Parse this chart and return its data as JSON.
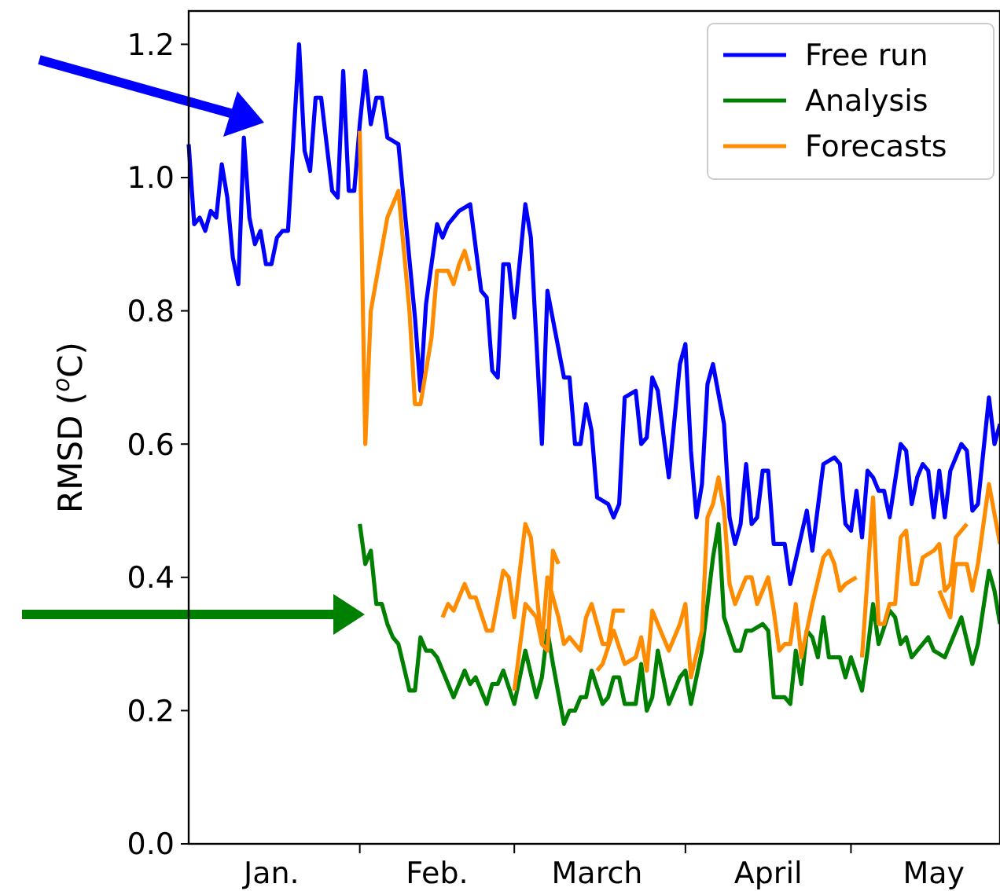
{
  "chart_data": {
    "type": "line",
    "ylabel": "RMSD ($^{o}$C)",
    "xlim": [
      "--01-01",
      "--05-28"
    ],
    "ylim": [
      0,
      1.25
    ],
    "yticks": [
      {
        "value": 0,
        "label": "0.0"
      },
      0.2,
      0.4,
      0.6,
      0.8,
      {
        "value": 1,
        "label": "1.0"
      },
      1.2
    ],
    "xticks": [
      {
        "value": "--02-01",
        "label": null
      },
      {
        "value": "--03-01",
        "label": null
      },
      {
        "value": "--04-01",
        "label": null
      },
      {
        "value": "--05-01",
        "label": null
      },
      {
        "value": "--01-16",
        "label": "Jan."
      },
      {
        "value": "--02-15",
        "label": "Feb."
      },
      {
        "value": "--03-16",
        "label": "March"
      },
      {
        "value": "--04-16",
        "label": "April"
      },
      {
        "value": "--05-16",
        "label": "May"
      }
    ],
    "legend": "top right",
    "series": [
      {
        "name": "Free run",
        "color": "#0000ff",
        "x": [
          "--01-01",
          "--01-02",
          "--01-03",
          "--01-04",
          "--01-05",
          "--01-06",
          "--01-07",
          "--01-08",
          "--01-09",
          "--01-10",
          "--01-11",
          "--01-12",
          "--01-13",
          "--01-14",
          "--01-15",
          "--01-16",
          "--01-17",
          "--01-18",
          "--01-19",
          "--01-21",
          "--01-22",
          "--01-23",
          "--01-24",
          "--01-25",
          "--01-27",
          "--01-28",
          "--01-29",
          "--01-30",
          "--01-31",
          "--02-01",
          "--02-02",
          "--02-03",
          "--02-04",
          "--02-05",
          "--02-06",
          "--02-08",
          "--02-11",
          "--02-12",
          "--02-13",
          "--02-15",
          "--02-16",
          "--02-17",
          "--02-18",
          "--02-19",
          "--02-21",
          "--02-23",
          "--02-24",
          "--02-25",
          "--02-26",
          "--02-27",
          "--02-28",
          "--03-01",
          "--03-03",
          "--03-04",
          "--03-06",
          "--03-07",
          "--03-10",
          "--03-11",
          "--03-12",
          "--03-13",
          "--03-14",
          "--03-15",
          "--03-16",
          "--03-18",
          "--03-19",
          "--03-20",
          "--03-21",
          "--03-23",
          "--03-24",
          "--03-25",
          "--03-26",
          "--03-27",
          "--03-29",
          "--03-31",
          "--04-01",
          "--04-02",
          "--04-03",
          "--04-04",
          "--04-05",
          "--04-06",
          "--04-08",
          "--04-09",
          "--04-10",
          "--04-11",
          "--04-12",
          "--04-13",
          "--04-14",
          "--04-15",
          "--04-16",
          "--04-17",
          "--04-19",
          "--04-20",
          "--04-23",
          "--04-24",
          "--04-26",
          "--04-28",
          "--04-29",
          "--04-30",
          "--05-01",
          "--05-02",
          "--05-03",
          "--05-04",
          "--05-05",
          "--05-06",
          "--05-07",
          "--05-08",
          "--05-10",
          "--05-11",
          "--05-12",
          "--05-13",
          "--05-14",
          "--05-15",
          "--05-16",
          "--05-17",
          "--05-18",
          "--05-19",
          "--05-21",
          "--05-22",
          "--05-23",
          "--05-24",
          "--05-26",
          "--05-27",
          "--05-28"
        ],
        "values": [
          1.05,
          0.93,
          0.94,
          0.92,
          0.95,
          0.94,
          1.02,
          0.97,
          0.88,
          0.84,
          1.06,
          0.94,
          0.9,
          0.92,
          0.87,
          0.87,
          0.91,
          0.92,
          0.92,
          1.2,
          1.04,
          1.01,
          1.12,
          1.12,
          0.98,
          0.97,
          1.16,
          0.98,
          0.98,
          1.08,
          1.16,
          1.08,
          1.12,
          1.12,
          1.06,
          1.05,
          0.79,
          0.68,
          0.81,
          0.93,
          0.91,
          0.93,
          0.94,
          0.95,
          0.96,
          0.83,
          0.82,
          0.71,
          0.7,
          0.87,
          0.87,
          0.79,
          0.96,
          0.91,
          0.6,
          0.83,
          0.7,
          0.7,
          0.6,
          0.6,
          0.66,
          0.62,
          0.52,
          0.51,
          0.49,
          0.51,
          0.67,
          0.68,
          0.6,
          0.61,
          0.7,
          0.68,
          0.55,
          0.72,
          0.75,
          0.59,
          0.49,
          0.54,
          0.69,
          0.72,
          0.63,
          0.49,
          0.45,
          0.48,
          0.57,
          0.48,
          0.49,
          0.56,
          0.56,
          0.45,
          0.45,
          0.39,
          0.5,
          0.44,
          0.57,
          0.58,
          0.57,
          0.48,
          0.47,
          0.53,
          0.46,
          0.56,
          0.55,
          0.53,
          0.53,
          0.49,
          0.6,
          0.59,
          0.51,
          0.55,
          0.57,
          0.56,
          0.49,
          0.56,
          0.49,
          0.56,
          0.6,
          0.59,
          0.5,
          0.51,
          0.67,
          0.6,
          0.63
        ]
      },
      {
        "name": "Analysis",
        "color": "#008000",
        "x": [
          "--02-01",
          "--02-02",
          "--02-03",
          "--02-04",
          "--02-05",
          "--02-06",
          "--02-07",
          "--02-08",
          "--02-10",
          "--02-11",
          "--02-12",
          "--02-13",
          "--02-14",
          "--02-15",
          "--02-18",
          "--02-20",
          "--02-21",
          "--02-22",
          "--02-24",
          "--02-25",
          "--02-26",
          "--02-27",
          "--03-01",
          "--03-03",
          "--03-05",
          "--03-06",
          "--03-07",
          "--03-08",
          "--03-10",
          "--03-11",
          "--03-12",
          "--03-13",
          "--03-14",
          "--03-15",
          "--03-17",
          "--03-18",
          "--03-19",
          "--03-20",
          "--03-21",
          "--03-23",
          "--03-24",
          "--03-25",
          "--03-26",
          "--03-27",
          "--03-29",
          "--03-30",
          "--03-31",
          "--04-01",
          "--04-02",
          "--04-04",
          "--04-06",
          "--04-07",
          "--04-08",
          "--04-10",
          "--04-11",
          "--04-12",
          "--04-13",
          "--04-15",
          "--04-16",
          "--04-17",
          "--04-19",
          "--04-20",
          "--04-21",
          "--04-22",
          "--04-23",
          "--04-24",
          "--04-25",
          "--04-26",
          "--04-27",
          "--04-29",
          "--04-30",
          "--05-01",
          "--05-03",
          "--05-04",
          "--05-05",
          "--05-06",
          "--05-08",
          "--05-09",
          "--05-10",
          "--05-11",
          "--05-12",
          "--05-13",
          "--05-15",
          "--05-16",
          "--05-18",
          "--05-20",
          "--05-21",
          "--05-23",
          "--05-24",
          "--05-26",
          "--05-27",
          "--05-28"
        ],
        "values": [
          0.48,
          0.42,
          0.44,
          0.36,
          0.36,
          0.33,
          0.31,
          0.3,
          0.23,
          0.23,
          0.31,
          0.29,
          0.29,
          0.28,
          0.22,
          0.26,
          0.24,
          0.25,
          0.21,
          0.24,
          0.24,
          0.26,
          0.21,
          0.29,
          0.22,
          0.25,
          0.32,
          0.27,
          0.18,
          0.2,
          0.2,
          0.22,
          0.22,
          0.26,
          0.21,
          0.22,
          0.25,
          0.25,
          0.21,
          0.21,
          0.27,
          0.2,
          0.22,
          0.29,
          0.21,
          0.23,
          0.25,
          0.26,
          0.21,
          0.29,
          0.43,
          0.48,
          0.34,
          0.29,
          0.29,
          0.32,
          0.32,
          0.33,
          0.32,
          0.22,
          0.22,
          0.21,
          0.29,
          0.24,
          0.32,
          0.31,
          0.28,
          0.34,
          0.28,
          0.28,
          0.25,
          0.28,
          0.23,
          0.29,
          0.36,
          0.3,
          0.35,
          0.34,
          0.3,
          0.31,
          0.28,
          0.29,
          0.31,
          0.29,
          0.28,
          0.32,
          0.34,
          0.27,
          0.3,
          0.41,
          0.38,
          0.33
        ]
      },
      {
        "name": "Forecasts",
        "color": "#ff8c00",
        "x": [
          "--02-01",
          "--02-02",
          "--02-03",
          "--02-06",
          "--02-08",
          "--02-10",
          "--02-11",
          "--02-12",
          "--02-14",
          "--02-15",
          "--02-17",
          "--02-18",
          "--02-19",
          "--02-20",
          "--02-21"
        ],
        "values": [
          1.07,
          0.6,
          0.8,
          0.94,
          0.98,
          0.8,
          0.66,
          0.66,
          0.76,
          0.86,
          0.86,
          0.84,
          0.87,
          0.89,
          0.86
        ]
      },
      {
        "color": "#ff8c00",
        "x": [
          "--02-16",
          "--02-17",
          "--02-18",
          "--02-20",
          "--02-21",
          "--02-22",
          "--02-24",
          "--02-25",
          "--02-27",
          "--02-28",
          "--03-01",
          "--03-03",
          "--03-04",
          "--03-06",
          "--03-07",
          "--03-08",
          "--03-09"
        ],
        "values": [
          0.34,
          0.36,
          0.35,
          0.39,
          0.37,
          0.37,
          0.32,
          0.32,
          0.41,
          0.4,
          0.34,
          0.48,
          0.46,
          0.3,
          0.29,
          0.44,
          0.42
        ]
      },
      {
        "color": "#ff8c00",
        "x": [
          "--03-01",
          "--03-03",
          "--03-05",
          "--03-06",
          "--03-07",
          "--03-09",
          "--03-10",
          "--03-11",
          "--03-13",
          "--03-14",
          "--03-15",
          "--03-17",
          "--03-18",
          "--03-19",
          "--03-20",
          "--03-21"
        ],
        "values": [
          0.23,
          0.36,
          0.34,
          0.3,
          0.4,
          0.34,
          0.3,
          0.31,
          0.29,
          0.34,
          0.36,
          0.3,
          0.3,
          0.35,
          0.35,
          0.35
        ]
      },
      {
        "color": "#ff8c00",
        "x": [
          "--03-16",
          "--03-17",
          "--03-19",
          "--03-21",
          "--03-23",
          "--03-24",
          "--03-25",
          "--03-26",
          "--03-27",
          "--03-29",
          "--03-31",
          "--04-01",
          "--04-02",
          "--04-04",
          "--04-05",
          "--04-06",
          "--04-07",
          "--04-08",
          "--04-09",
          "--04-10",
          "--04-12",
          "--04-13",
          "--04-14",
          "--04-16",
          "--04-17",
          "--04-18",
          "--04-19",
          "--04-20",
          "--04-21",
          "--04-22",
          "--04-24",
          "--04-26",
          "--04-27",
          "--04-28",
          "--04-29",
          "--04-30",
          "--05-02"
        ],
        "values": [
          0.26,
          0.27,
          0.32,
          0.27,
          0.28,
          0.31,
          0.26,
          0.35,
          0.33,
          0.29,
          0.33,
          0.36,
          0.25,
          0.32,
          0.49,
          0.51,
          0.55,
          0.5,
          0.39,
          0.36,
          0.4,
          0.4,
          0.36,
          0.4,
          0.35,
          0.29,
          0.3,
          0.3,
          0.36,
          0.28,
          0.36,
          0.43,
          0.44,
          0.42,
          0.38,
          0.39,
          0.4
        ]
      },
      {
        "color": "#ff8c00",
        "x": [
          "--05-03",
          "--05-05",
          "--05-06",
          "--05-07",
          "--05-08",
          "--05-09",
          "--05-10",
          "--05-11",
          "--05-12",
          "--05-13",
          "--05-14",
          "--05-16",
          "--05-17",
          "--05-18",
          "--05-19",
          "--05-20",
          "--05-22"
        ],
        "values": [
          0.28,
          0.52,
          0.33,
          0.33,
          0.36,
          0.36,
          0.46,
          0.47,
          0.39,
          0.39,
          0.43,
          0.44,
          0.45,
          0.38,
          0.39,
          0.46,
          0.48
        ]
      },
      {
        "color": "#ff8c00",
        "x": [
          "--05-17",
          "--05-19",
          "--05-20",
          "--05-22",
          "--05-23",
          "--05-24",
          "--05-26",
          "--05-28"
        ],
        "values": [
          0.38,
          0.34,
          0.42,
          0.42,
          0.38,
          0.42,
          0.54,
          0.45
        ]
      }
    ]
  }
}
